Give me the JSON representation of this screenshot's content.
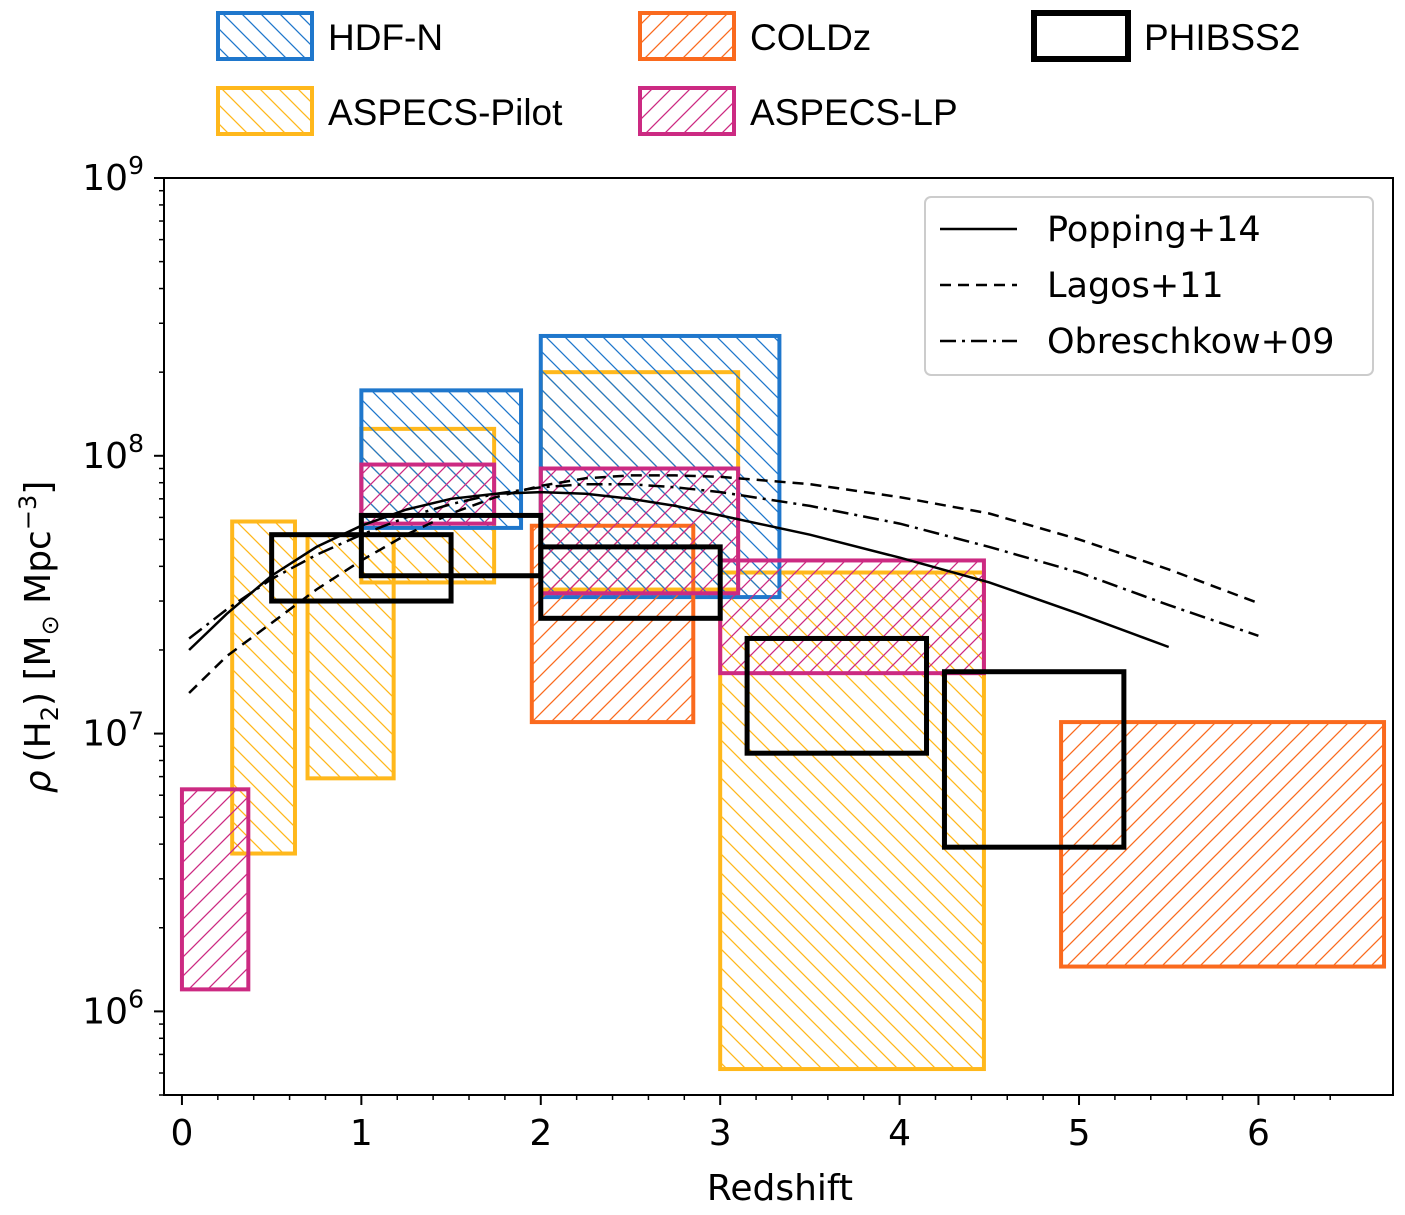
{
  "chart_data": {
    "type": "area",
    "xlabel": "Redshift",
    "ylabel_main": "ρ",
    "ylabel_h2": "(H",
    "ylabel_h2_sub": "2",
    "ylabel_units": ") [M",
    "ylabel_sun": "⊙",
    "ylabel_mpc": " Mpc",
    "ylabel_exp": "−3",
    "ylabel_close": "]",
    "xlim": [
      -0.1,
      6.75
    ],
    "ylim": [
      500000,
      1000000000
    ],
    "yscale": "log",
    "x_ticks": [
      0,
      1,
      2,
      3,
      4,
      5,
      6
    ],
    "x_tick_labels": [
      "0",
      "1",
      "2",
      "3",
      "4",
      "5",
      "6"
    ],
    "y_ticks": [
      1000000,
      10000000,
      100000000,
      1000000000
    ],
    "y_tick_base": "10",
    "y_tick_exps": [
      "6",
      "7",
      "8",
      "9"
    ],
    "colors": {
      "HDF-N": "#1f77cc",
      "COLDz": "#fa6a1e",
      "PHIBSS2": "#000000",
      "ASPECS-Pilot": "#ffb81c",
      "ASPECS-LP": "#cc2a82"
    },
    "box_legend": [
      {
        "label": "HDF-N",
        "key": "HDF-N",
        "hatch": "back"
      },
      {
        "label": "COLDz",
        "key": "COLDz",
        "hatch": "fwd"
      },
      {
        "label": "PHIBSS2",
        "key": "PHIBSS2",
        "hatch": "none"
      },
      {
        "label": "ASPECS-Pilot",
        "key": "ASPECS-Pilot",
        "hatch": "back"
      },
      {
        "label": "ASPECS-LP",
        "key": "ASPECS-LP",
        "hatch": "fwd"
      }
    ],
    "boxes": [
      {
        "survey": "ASPECS-Pilot",
        "hatch": "back",
        "x0": 0.28,
        "x1": 0.63,
        "y0": 3700000,
        "y1": 58000000
      },
      {
        "survey": "ASPECS-Pilot",
        "hatch": "back",
        "x0": 0.7,
        "x1": 1.18,
        "y0": 6900000,
        "y1": 52000000
      },
      {
        "survey": "ASPECS-Pilot",
        "hatch": "back",
        "x0": 1.0,
        "x1": 1.74,
        "y0": 35000000,
        "y1": 125000000
      },
      {
        "survey": "ASPECS-Pilot",
        "hatch": "back",
        "x0": 2.0,
        "x1": 3.1,
        "y0": 33000000,
        "y1": 200000000
      },
      {
        "survey": "ASPECS-Pilot",
        "hatch": "back",
        "x0": 3.0,
        "x1": 4.47,
        "y0": 620000,
        "y1": 38000000
      },
      {
        "survey": "HDF-N",
        "hatch": "back",
        "x0": 1.0,
        "x1": 1.89,
        "y0": 55000000,
        "y1": 172000000
      },
      {
        "survey": "HDF-N",
        "hatch": "back",
        "x0": 2.0,
        "x1": 3.33,
        "y0": 31000000,
        "y1": 270000000
      },
      {
        "survey": "COLDz",
        "hatch": "fwd",
        "x0": 1.95,
        "x1": 2.85,
        "y0": 11000000,
        "y1": 56000000
      },
      {
        "survey": "COLDz",
        "hatch": "fwd",
        "x0": 4.9,
        "x1": 6.7,
        "y0": 1450000,
        "y1": 11000000
      },
      {
        "survey": "ASPECS-LP",
        "hatch": "fwd",
        "x0": 0.0,
        "x1": 0.37,
        "y0": 1200000,
        "y1": 6300000
      },
      {
        "survey": "ASPECS-LP",
        "hatch": "fwd",
        "x0": 1.0,
        "x1": 1.74,
        "y0": 57000000,
        "y1": 93000000
      },
      {
        "survey": "ASPECS-LP",
        "hatch": "fwd",
        "x0": 2.0,
        "x1": 3.1,
        "y0": 32000000,
        "y1": 90000000
      },
      {
        "survey": "ASPECS-LP",
        "hatch": "fwd",
        "x0": 3.0,
        "x1": 4.47,
        "y0": 16500000,
        "y1": 42000000
      },
      {
        "survey": "PHIBSS2",
        "hatch": "none",
        "x0": 0.5,
        "x1": 1.5,
        "y0": 30000000,
        "y1": 52000000
      },
      {
        "survey": "PHIBSS2",
        "hatch": "none",
        "x0": 1.0,
        "x1": 2.0,
        "y0": 37000000,
        "y1": 61000000
      },
      {
        "survey": "PHIBSS2",
        "hatch": "none",
        "x0": 2.0,
        "x1": 3.0,
        "y0": 26000000,
        "y1": 47000000
      },
      {
        "survey": "PHIBSS2",
        "hatch": "none",
        "x0": 3.15,
        "x1": 4.15,
        "y0": 8500000,
        "y1": 22000000
      },
      {
        "survey": "PHIBSS2",
        "hatch": "none",
        "x0": 4.25,
        "x1": 5.25,
        "y0": 3900000,
        "y1": 16700000
      }
    ],
    "series": [
      {
        "name": "Popping+14",
        "dash": "solid",
        "x": [
          0.04,
          0.25,
          0.5,
          0.75,
          1.0,
          1.25,
          1.5,
          1.75,
          2.0,
          2.25,
          2.5,
          2.75,
          3.0,
          3.5,
          4.0,
          4.5,
          5.0,
          5.5
        ],
        "y": [
          20000000,
          27000000,
          37000000,
          47000000,
          56000000,
          64000000,
          70000000,
          73000000,
          74000000,
          73000000,
          70000000,
          66000000,
          61000000,
          52000000,
          43000000,
          35000000,
          27000000,
          20500000
        ]
      },
      {
        "name": "Lagos+11",
        "dash": "dashed",
        "x": [
          0.04,
          0.25,
          0.5,
          0.75,
          1.0,
          1.25,
          1.5,
          1.75,
          2.0,
          2.25,
          2.5,
          2.75,
          3.0,
          3.5,
          4.0,
          4.5,
          5.0,
          5.5,
          6.0
        ],
        "y": [
          14000000,
          19000000,
          25000000,
          33000000,
          42000000,
          52000000,
          62000000,
          71000000,
          78000000,
          83000000,
          85000000,
          85000000,
          84000000,
          79000000,
          71000000,
          62000000,
          50000000,
          39000000,
          29500000
        ]
      },
      {
        "name": "Obreschkow+09",
        "dash": "dashdot",
        "x": [
          0.04,
          0.25,
          0.5,
          0.75,
          1.0,
          1.25,
          1.5,
          1.75,
          2.0,
          2.25,
          2.5,
          2.75,
          3.0,
          3.5,
          4.0,
          4.5,
          5.0,
          5.5,
          6.0
        ],
        "y": [
          22000000,
          28000000,
          36000000,
          44000000,
          52000000,
          60000000,
          67000000,
          73000000,
          77000000,
          79000000,
          79000000,
          77000000,
          74000000,
          66000000,
          57000000,
          47000000,
          38000000,
          29000000,
          22500000
        ]
      }
    ],
    "line_legend_location": "upper right"
  }
}
